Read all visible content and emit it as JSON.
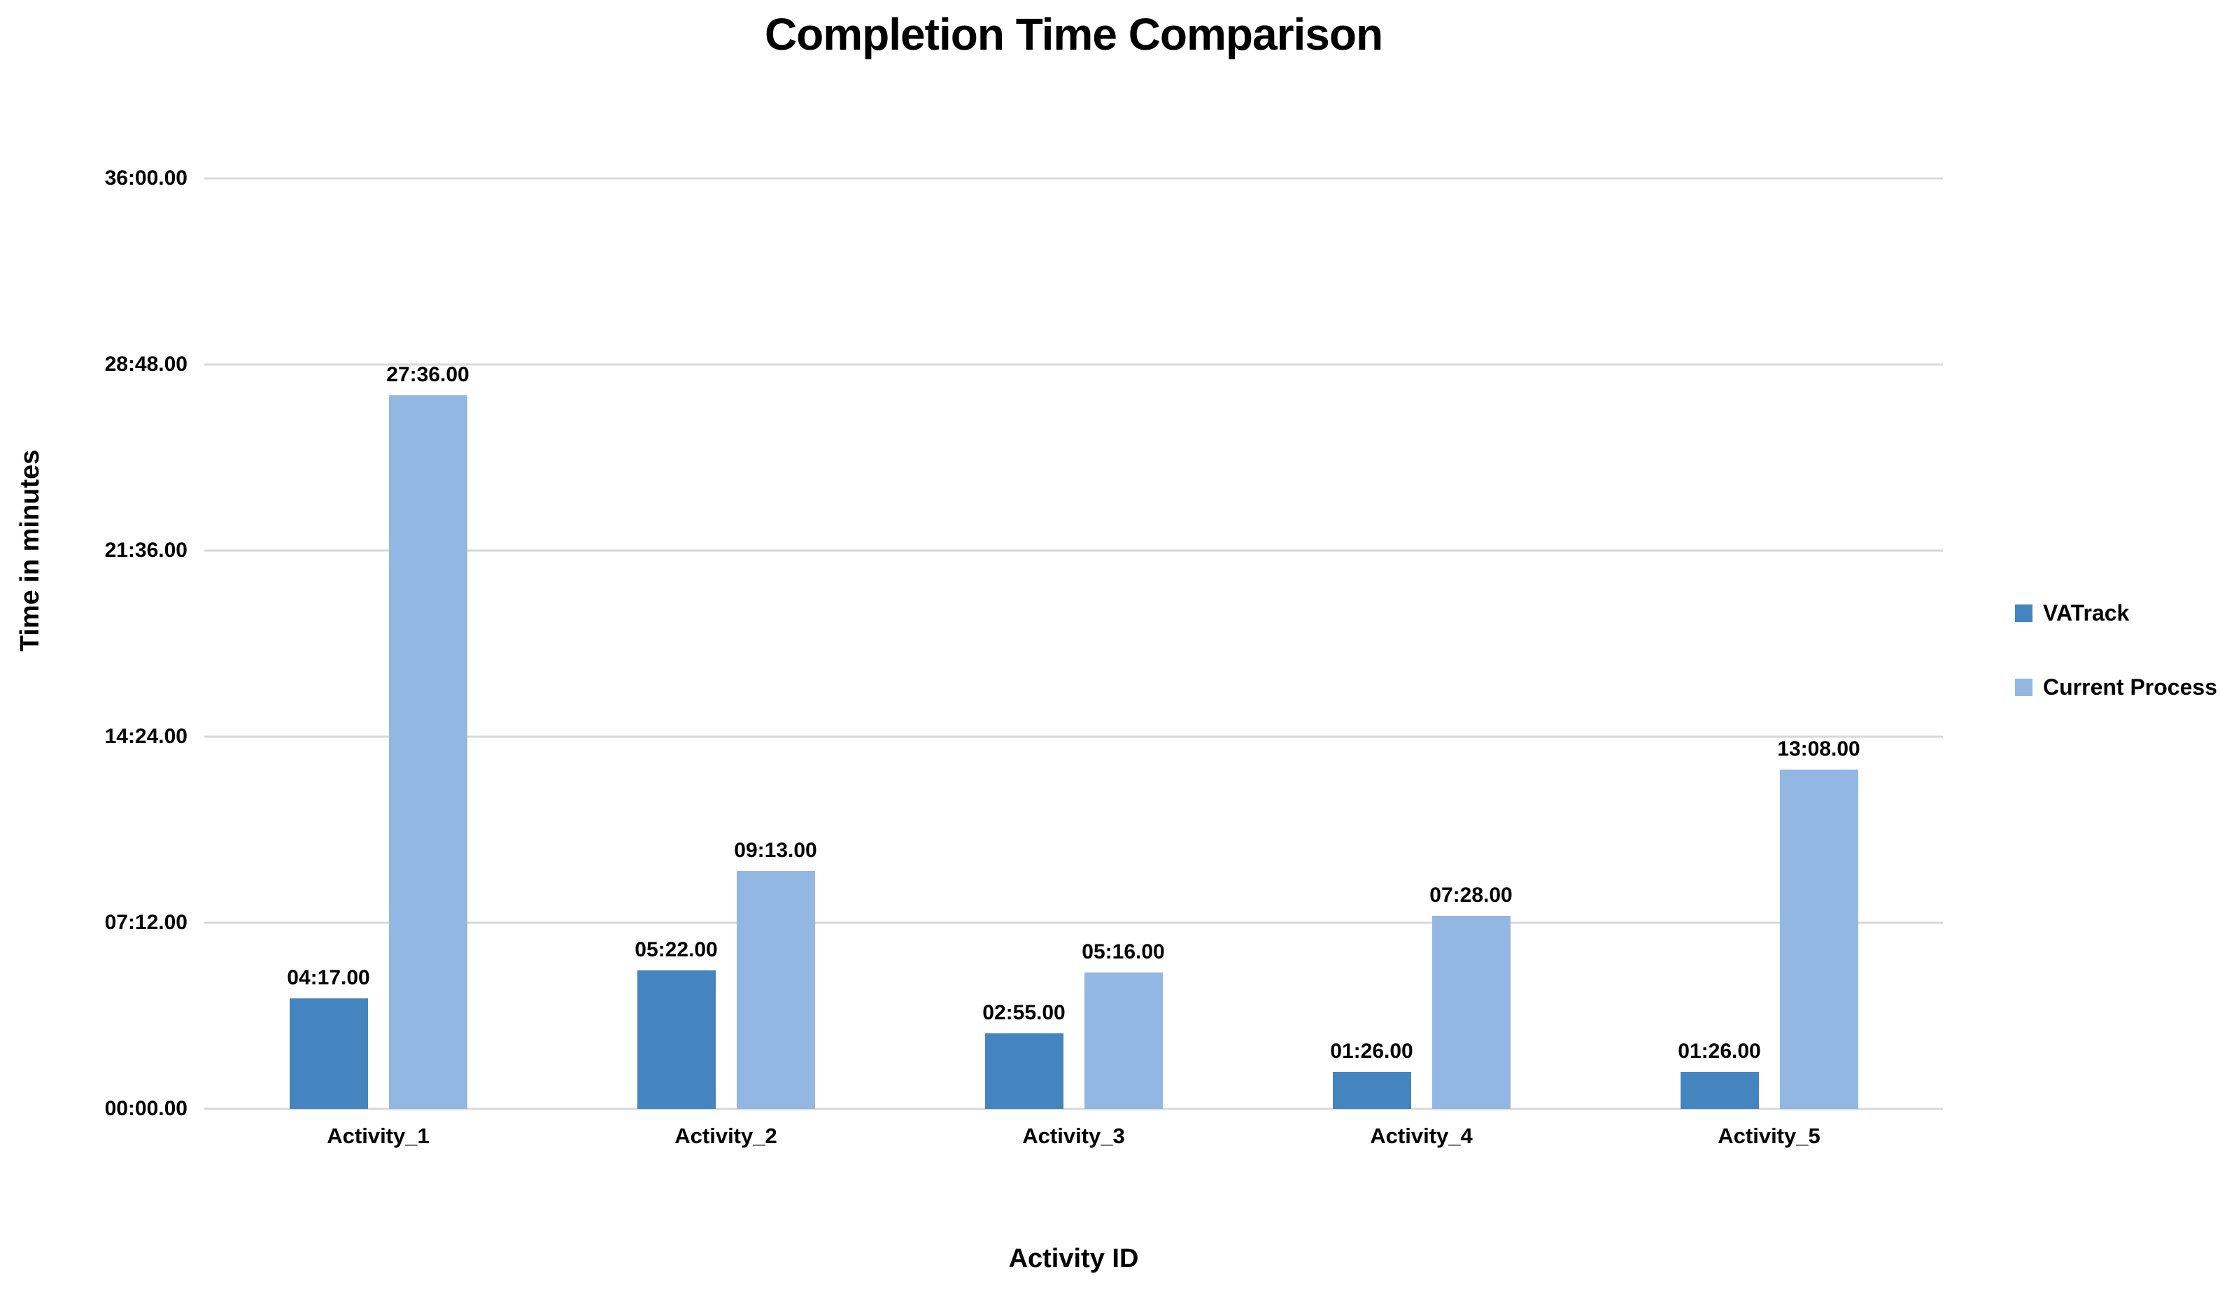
{
  "chart_data": {
    "type": "bar",
    "title": "Completion Time Comparison",
    "xlabel": "Activity ID",
    "ylabel": "Time in minutes",
    "categories": [
      "Activity_1",
      "Activity_2",
      "Activity_3",
      "Activity_4",
      "Activity_5"
    ],
    "series": [
      {
        "name": "VATrack",
        "color": "#4585BF",
        "values_minutes": [
          4.2833,
          5.3667,
          2.9167,
          1.4333,
          1.4333
        ],
        "labels": [
          "04:17.00",
          "05:22.00",
          "02:55.00",
          "01:26.00",
          "01:26.00"
        ]
      },
      {
        "name": "Current Process",
        "color": "#93B7E3",
        "values_minutes": [
          27.6,
          9.2167,
          5.2667,
          7.4667,
          13.1333
        ],
        "labels": [
          "27:36.00",
          "09:13.00",
          "05:16.00",
          "07:28.00",
          "13:08.00"
        ]
      }
    ],
    "y_ticks": [
      "36:00.00",
      "28:48.00",
      "21:36.00",
      "14:24.00",
      "07:12.00",
      "00:00.00"
    ],
    "ylim_minutes": [
      0,
      36
    ],
    "grid": true,
    "grid_color": "#D8D8D8",
    "legend_position": "right-middle",
    "background_color": "#FFFFFF",
    "text_color": "#000000"
  }
}
